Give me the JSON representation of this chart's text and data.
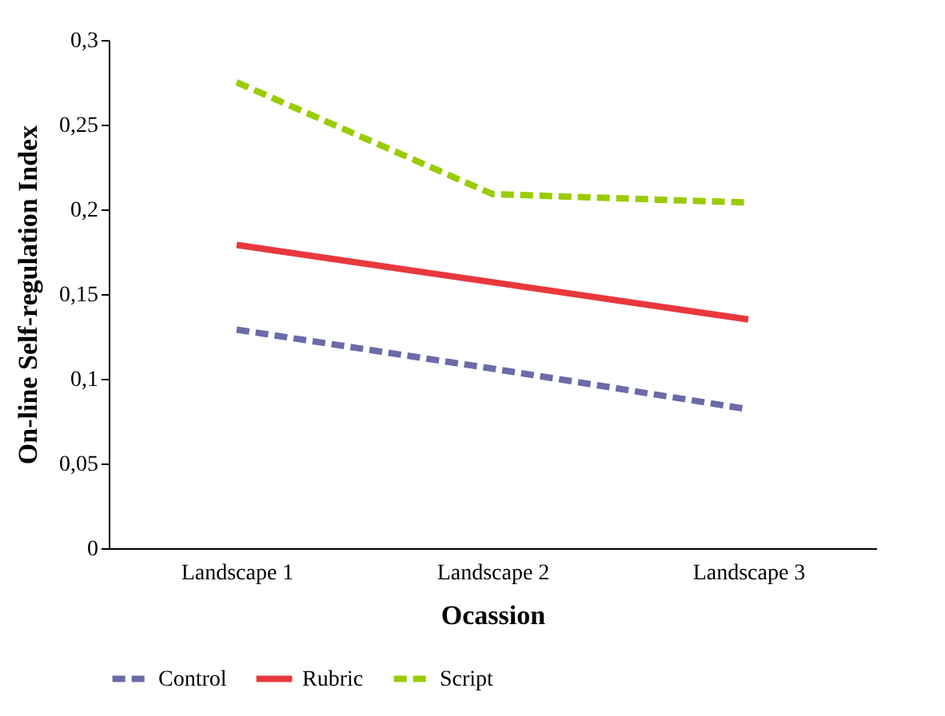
{
  "chart_data": {
    "type": "line",
    "xlabel": "Ocassion",
    "ylabel": "On-line Self-regulation Index",
    "categories": [
      "Landscape 1",
      "Landscape 2",
      "Landscape 3"
    ],
    "series": [
      {
        "name": "Control",
        "color": "#6b6ba8",
        "line_style": "dashed",
        "values": [
          0.129,
          0.106,
          0.082
        ]
      },
      {
        "name": "Rubric",
        "color": "#e8383d",
        "line_style": "solid",
        "values": [
          0.179,
          0.157,
          0.135
        ]
      },
      {
        "name": "Script",
        "color": "#99cc00",
        "line_style": "dashed",
        "values": [
          0.275,
          0.209,
          0.204
        ]
      }
    ],
    "ylim": [
      0,
      0.3
    ],
    "yticks": [
      {
        "value": 0,
        "label": "0"
      },
      {
        "value": 0.05,
        "label": "0,05"
      },
      {
        "value": 0.1,
        "label": "0,1"
      },
      {
        "value": 0.15,
        "label": "0,15"
      },
      {
        "value": 0.2,
        "label": "0,2"
      },
      {
        "value": 0.25,
        "label": "0,25"
      },
      {
        "value": 0.3,
        "label": "0,3"
      }
    ],
    "grid": false,
    "legend": "bottom",
    "marker": "none"
  }
}
